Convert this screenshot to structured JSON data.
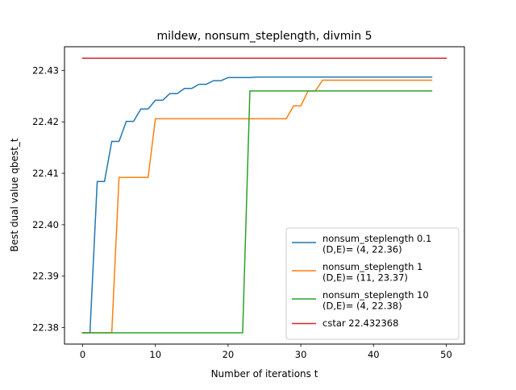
{
  "chart_data": {
    "type": "line",
    "title": "mildew, nonsum_steplength, divmin 5",
    "xlabel": "Number of iterations t",
    "ylabel": "Best dual value qbest_t",
    "xlim": [
      -2.5,
      52.5
    ],
    "ylim": [
      22.3768,
      22.4346
    ],
    "xticks": [
      0,
      10,
      20,
      30,
      40,
      50
    ],
    "yticks": [
      22.38,
      22.39,
      22.4,
      22.41,
      22.42,
      22.43
    ],
    "ytick_labels": [
      "22.38",
      "22.39",
      "22.40",
      "22.41",
      "22.42",
      "22.43"
    ],
    "grid": false,
    "legend_position": "lower-right",
    "series": [
      {
        "name": "nonsum_steplength 0.1",
        "legend_lines": [
          "nonsum_steplength 0.1",
          "(D,E)= (4, 22.36)"
        ],
        "color": "#1f77b4",
        "x": [
          0,
          1,
          2,
          3,
          4,
          5,
          6,
          7,
          8,
          9,
          10,
          11,
          12,
          13,
          14,
          15,
          16,
          17,
          18,
          19,
          20,
          21,
          22,
          23,
          24,
          25,
          26,
          27,
          28,
          29,
          30,
          31,
          32,
          33,
          34,
          35,
          36,
          37,
          38,
          39,
          40,
          41,
          42,
          43,
          44,
          45,
          46,
          47,
          48
        ],
        "y": [
          22.379,
          22.379,
          22.4084,
          22.4084,
          22.4162,
          22.4162,
          22.4201,
          22.4201,
          22.4225,
          22.4225,
          22.4242,
          22.4242,
          22.4255,
          22.4255,
          22.4265,
          22.4265,
          22.4273,
          22.4273,
          22.428,
          22.428,
          22.4286,
          22.4286,
          22.4286,
          22.4286,
          22.4287,
          22.4287,
          22.4287,
          22.4287,
          22.4287,
          22.4287,
          22.4287,
          22.4287,
          22.4287,
          22.4287,
          22.4287,
          22.4287,
          22.4287,
          22.4287,
          22.4287,
          22.4287,
          22.4287,
          22.4287,
          22.4287,
          22.4287,
          22.4287,
          22.4287,
          22.4287,
          22.4287,
          22.4287
        ]
      },
      {
        "name": "nonsum_steplength 1",
        "legend_lines": [
          "nonsum_steplength 1",
          "(D,E)= (11, 23.37)"
        ],
        "color": "#ff7f0e",
        "x": [
          0,
          1,
          2,
          3,
          4,
          5,
          6,
          7,
          8,
          9,
          10,
          11,
          12,
          13,
          14,
          15,
          16,
          17,
          18,
          19,
          20,
          21,
          22,
          23,
          24,
          25,
          26,
          27,
          28,
          29,
          30,
          31,
          32,
          33,
          34,
          35,
          36,
          37,
          38,
          39,
          40,
          41,
          42,
          43,
          44,
          45,
          46,
          47,
          48
        ],
        "y": [
          22.379,
          22.379,
          22.379,
          22.379,
          22.379,
          22.4092,
          22.4092,
          22.4092,
          22.4092,
          22.4092,
          22.4206,
          22.4206,
          22.4206,
          22.4206,
          22.4206,
          22.4206,
          22.4206,
          22.4206,
          22.4206,
          22.4206,
          22.4206,
          22.4206,
          22.4206,
          22.4206,
          22.4206,
          22.4206,
          22.4206,
          22.4206,
          22.4206,
          22.4231,
          22.4231,
          22.426,
          22.426,
          22.4281,
          22.4281,
          22.4281,
          22.4281,
          22.4281,
          22.4281,
          22.4281,
          22.4281,
          22.4281,
          22.4281,
          22.4281,
          22.4281,
          22.4281,
          22.4281,
          22.4281,
          22.4281
        ]
      },
      {
        "name": "nonsum_steplength 10",
        "legend_lines": [
          "nonsum_steplength 10",
          "(D,E)= (4, 22.38)"
        ],
        "color": "#2ca02c",
        "x": [
          0,
          22,
          23,
          48
        ],
        "y": [
          22.379,
          22.379,
          22.426,
          22.426
        ]
      },
      {
        "name": "cstar 22.432368",
        "legend_lines": [
          "cstar 22.432368"
        ],
        "color": "#d62728",
        "x": [
          0,
          50
        ],
        "y": [
          22.432368,
          22.432368
        ]
      }
    ]
  }
}
